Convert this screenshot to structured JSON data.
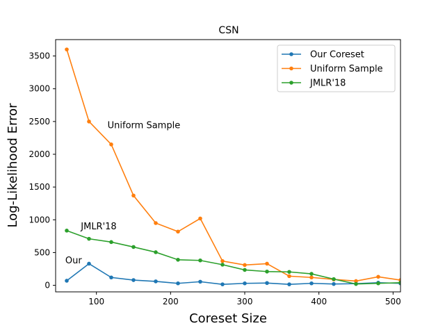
{
  "chart_data": {
    "type": "line",
    "title": "CSN",
    "xlabel": "Coreset Size",
    "ylabel": "Log-Likelihood Error",
    "xlim": [
      45,
      510
    ],
    "ylim": [
      -100,
      3750
    ],
    "xticks": [
      100,
      200,
      300,
      400,
      500
    ],
    "yticks": [
      0,
      500,
      1000,
      1500,
      2000,
      2500,
      3000,
      3500
    ],
    "grid": false,
    "legend_position": "top-right",
    "x": [
      60,
      90,
      120,
      150,
      180,
      210,
      240,
      270,
      300,
      330,
      360,
      390,
      420,
      450,
      480,
      510
    ],
    "series": [
      {
        "name": "Our Coreset",
        "color": "#1f77b4",
        "values": [
          70,
          330,
          120,
          80,
          60,
          30,
          55,
          15,
          30,
          35,
          15,
          30,
          20,
          25,
          40,
          30
        ]
      },
      {
        "name": "Uniform Sample",
        "color": "#ff7f0e",
        "values": [
          3600,
          2500,
          2150,
          1370,
          950,
          820,
          1020,
          370,
          310,
          330,
          140,
          120,
          90,
          65,
          130,
          80
        ]
      },
      {
        "name": "JMLR'18",
        "color": "#2ca02c",
        "values": [
          835,
          710,
          660,
          585,
          505,
          390,
          380,
          315,
          235,
          210,
          205,
          175,
          95,
          20,
          30,
          40
        ]
      }
    ],
    "annotations": [
      {
        "text": "Uniform Sample",
        "x": 115,
        "y": 2400
      },
      {
        "text": "JMLR'18",
        "x": 79,
        "y": 855
      },
      {
        "text": "Our",
        "x": 58,
        "y": 335
      }
    ]
  }
}
